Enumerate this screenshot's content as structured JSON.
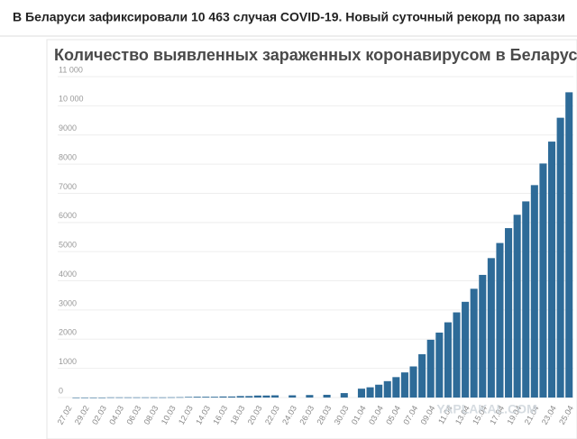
{
  "header": {
    "headline": "В Беларуси зафиксировали 10 463 случая COVID-19. Новый суточный рекорд по зарази"
  },
  "chart_data": {
    "type": "bar",
    "title": "Количество выявленных зараженных коронавирусом в Беларуси",
    "watermark": "YAPLAKAL.COM",
    "categories": [
      "27.02",
      null,
      "29.02",
      null,
      "02.03",
      null,
      "04.03",
      null,
      "06.03",
      null,
      "08.03",
      null,
      "10.03",
      null,
      "12.03",
      null,
      "14.03",
      null,
      "16.03",
      null,
      "18.03",
      null,
      "20.03",
      null,
      "22.03",
      null,
      "24.03",
      null,
      "26.03",
      null,
      "28.03",
      null,
      "30.03",
      null,
      "01.04",
      null,
      "03.04",
      null,
      "05.04",
      null,
      "07.04",
      null,
      "09.04",
      null,
      "11.04",
      null,
      "13.04",
      null,
      "15.04",
      null,
      "17.04",
      null,
      "19.04",
      null,
      "21.04",
      null,
      "23.04",
      null,
      "25.04"
    ],
    "values": [
      null,
      1,
      1,
      1,
      1,
      6,
      6,
      6,
      6,
      6,
      6,
      6,
      9,
      12,
      21,
      27,
      27,
      27,
      36,
      36,
      51,
      51,
      69,
      69,
      76,
      null,
      76,
      null,
      86,
      null,
      94,
      null,
      152,
      null,
      304,
      351,
      440,
      562,
      700,
      861,
      1066,
      1486,
      1981,
      2226,
      2578,
      2919,
      3281,
      3728,
      4204,
      4779,
      5297,
      5807,
      6264,
      6723,
      7281,
      8022,
      8773,
      9590,
      10463
    ],
    "color": "#2e6b98",
    "ylim": [
      0,
      11000
    ],
    "yticks": [
      0,
      1000,
      2000,
      3000,
      4000,
      5000,
      6000,
      7000,
      8000,
      9000,
      {
        "value": 10000,
        "label": "10 000"
      },
      {
        "value": 11000,
        "label": "11 000"
      }
    ],
    "grid": true
  }
}
